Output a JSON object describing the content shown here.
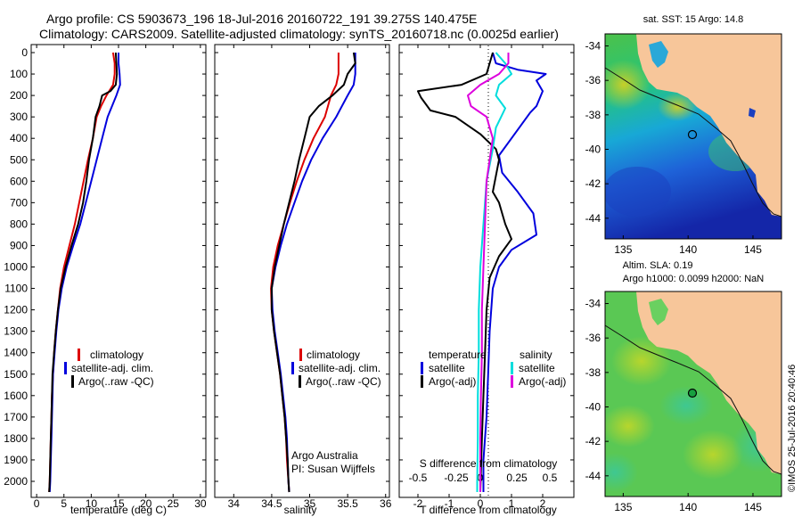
{
  "header": {
    "line1": "Argo profile: CS 5903673_196 18-Jul-2016 20160722_191 39.275S 140.475E",
    "line2": "Climatology: CARS2009. Satellite-adjusted climatology: synTS_20160718.nc (0.0025d earlier)"
  },
  "colors": {
    "climatology": "#dd0000",
    "satellite": "#0000dd",
    "argo": "#000000",
    "sal_satellite": "#00dddd",
    "sal_argo": "#dd00dd",
    "land": "#f7c69a"
  },
  "chart_data": [
    {
      "id": "temperature",
      "type": "line",
      "xlabel": "temperature (deg C)",
      "ylabel": "",
      "xlim": [
        -1,
        31
      ],
      "ylim": [
        2100,
        0
      ],
      "xticks": [
        0,
        5,
        10,
        15,
        20,
        25,
        30
      ],
      "yticks": [
        0,
        100,
        200,
        300,
        400,
        500,
        600,
        700,
        800,
        900,
        1000,
        1100,
        1200,
        1300,
        1400,
        1500,
        1600,
        1700,
        1800,
        1900,
        2000
      ],
      "legend": [
        "climatology",
        "satellite-adj. clim.",
        "Argo(..raw -QC)"
      ],
      "series": [
        {
          "name": "climatology",
          "color": "#dd0000",
          "points": [
            [
              14.0,
              0
            ],
            [
              14.3,
              50
            ],
            [
              14.3,
              100
            ],
            [
              14.0,
              150
            ],
            [
              12.8,
              200
            ],
            [
              11.8,
              250
            ],
            [
              11.0,
              300
            ],
            [
              10.3,
              400
            ],
            [
              9.4,
              500
            ],
            [
              8.6,
              600
            ],
            [
              7.8,
              700
            ],
            [
              7.0,
              800
            ],
            [
              6.0,
              900
            ],
            [
              5.0,
              1000
            ],
            [
              4.3,
              1100
            ],
            [
              3.9,
              1200
            ],
            [
              3.5,
              1300
            ],
            [
              3.2,
              1400
            ],
            [
              3.0,
              1500
            ],
            [
              2.8,
              1600
            ],
            [
              2.7,
              1700
            ],
            [
              2.6,
              1800
            ],
            [
              2.5,
              1900
            ],
            [
              2.4,
              2000
            ],
            [
              2.3,
              2050
            ]
          ]
        },
        {
          "name": "satellite-adj. clim.",
          "color": "#0000dd",
          "points": [
            [
              15.0,
              0
            ],
            [
              15.0,
              50
            ],
            [
              15.2,
              100
            ],
            [
              15.3,
              150
            ],
            [
              14.6,
              200
            ],
            [
              13.8,
              250
            ],
            [
              13.0,
              300
            ],
            [
              12.0,
              400
            ],
            [
              11.0,
              500
            ],
            [
              10.0,
              600
            ],
            [
              9.0,
              700
            ],
            [
              8.0,
              800
            ],
            [
              6.7,
              900
            ],
            [
              5.5,
              1000
            ],
            [
              4.6,
              1100
            ],
            [
              4.0,
              1200
            ],
            [
              3.6,
              1300
            ],
            [
              3.3,
              1400
            ],
            [
              3.0,
              1500
            ],
            [
              2.9,
              1600
            ],
            [
              2.8,
              1700
            ],
            [
              2.7,
              1800
            ],
            [
              2.6,
              1900
            ],
            [
              2.5,
              2000
            ],
            [
              2.4,
              2050
            ]
          ]
        },
        {
          "name": "Argo(..raw -QC)",
          "color": "#000000",
          "points": [
            [
              14.5,
              0
            ],
            [
              14.6,
              50
            ],
            [
              14.7,
              100
            ],
            [
              14.5,
              150
            ],
            [
              13.5,
              180
            ],
            [
              12.0,
              200
            ],
            [
              11.5,
              250
            ],
            [
              10.8,
              300
            ],
            [
              10.3,
              400
            ],
            [
              9.6,
              500
            ],
            [
              9.1,
              600
            ],
            [
              8.5,
              700
            ],
            [
              7.6,
              800
            ],
            [
              6.4,
              900
            ],
            [
              5.3,
              1000
            ],
            [
              4.4,
              1100
            ],
            [
              3.9,
              1200
            ],
            [
              3.5,
              1300
            ],
            [
              3.2,
              1400
            ],
            [
              2.9,
              1500
            ],
            [
              2.8,
              1600
            ],
            [
              2.7,
              1700
            ],
            [
              2.6,
              1800
            ],
            [
              2.5,
              1900
            ],
            [
              2.4,
              2000
            ],
            [
              2.3,
              2050
            ]
          ]
        }
      ]
    },
    {
      "id": "salinity",
      "type": "line",
      "xlabel": "salinity",
      "ylabel": "",
      "xlim": [
        33.75,
        36.05
      ],
      "ylim": [
        2100,
        0
      ],
      "xticks": [
        34,
        34.5,
        35,
        35.5,
        36
      ],
      "legend": [
        "climatology",
        "satellite-adj. clim.",
        "Argo(..raw -QC)"
      ],
      "annotation": [
        "Argo Australia",
        "PI: Susan Wijffels"
      ],
      "series": [
        {
          "name": "climatology",
          "color": "#dd0000",
          "points": [
            [
              35.38,
              0
            ],
            [
              35.38,
              100
            ],
            [
              35.35,
              150
            ],
            [
              35.28,
              200
            ],
            [
              35.2,
              300
            ],
            [
              35.05,
              400
            ],
            [
              34.93,
              500
            ],
            [
              34.83,
              600
            ],
            [
              34.74,
              700
            ],
            [
              34.66,
              800
            ],
            [
              34.58,
              900
            ],
            [
              34.52,
              1000
            ],
            [
              34.49,
              1100
            ],
            [
              34.5,
              1200
            ],
            [
              34.53,
              1300
            ],
            [
              34.57,
              1400
            ],
            [
              34.61,
              1500
            ],
            [
              34.64,
              1600
            ],
            [
              34.67,
              1700
            ],
            [
              34.69,
              1800
            ],
            [
              34.7,
              1900
            ],
            [
              34.72,
              2000
            ],
            [
              34.73,
              2050
            ]
          ]
        },
        {
          "name": "satellite-adj. clim.",
          "color": "#0000dd",
          "points": [
            [
              35.6,
              0
            ],
            [
              35.6,
              100
            ],
            [
              35.58,
              150
            ],
            [
              35.5,
              200
            ],
            [
              35.35,
              300
            ],
            [
              35.17,
              400
            ],
            [
              35.02,
              500
            ],
            [
              34.9,
              600
            ],
            [
              34.8,
              700
            ],
            [
              34.7,
              800
            ],
            [
              34.62,
              900
            ],
            [
              34.55,
              1000
            ],
            [
              34.5,
              1100
            ],
            [
              34.51,
              1200
            ],
            [
              34.54,
              1300
            ],
            [
              34.58,
              1400
            ],
            [
              34.62,
              1500
            ],
            [
              34.65,
              1600
            ],
            [
              34.68,
              1700
            ],
            [
              34.7,
              1800
            ],
            [
              34.71,
              1900
            ],
            [
              34.72,
              2000
            ],
            [
              34.73,
              2050
            ]
          ]
        },
        {
          "name": "Argo(..raw -QC)",
          "color": "#000000",
          "points": [
            [
              35.58,
              0
            ],
            [
              35.6,
              50
            ],
            [
              35.5,
              100
            ],
            [
              35.45,
              150
            ],
            [
              35.3,
              200
            ],
            [
              35.12,
              250
            ],
            [
              35.0,
              300
            ],
            [
              34.93,
              400
            ],
            [
              34.86,
              500
            ],
            [
              34.8,
              600
            ],
            [
              34.73,
              700
            ],
            [
              34.66,
              800
            ],
            [
              34.6,
              900
            ],
            [
              34.54,
              1000
            ],
            [
              34.5,
              1100
            ],
            [
              34.5,
              1200
            ],
            [
              34.53,
              1300
            ],
            [
              34.57,
              1400
            ],
            [
              34.61,
              1500
            ],
            [
              34.64,
              1600
            ],
            [
              34.67,
              1700
            ],
            [
              34.69,
              1800
            ],
            [
              34.71,
              1900
            ],
            [
              34.72,
              2000
            ],
            [
              34.73,
              2050
            ]
          ]
        }
      ]
    },
    {
      "id": "difference",
      "type": "line",
      "xlabel": "T difference from climatology",
      "xlabel_top": "S difference from climatology",
      "xlim": [
        -2.6,
        3.0
      ],
      "ylim": [
        2100,
        0
      ],
      "xticks": [
        -2,
        -1,
        0,
        1,
        2
      ],
      "xticks_top": [
        "-0.5",
        "-0.25",
        "0",
        "0.25",
        "0.5"
      ],
      "legend_headers": [
        "temperature",
        "salinity"
      ],
      "legend": [
        "satellite",
        "Argo(-adj)",
        "satellite",
        "Argo(-adj)"
      ],
      "series": [
        {
          "name": "satellite",
          "group": "temperature",
          "color": "#0000dd",
          "points": [
            [
              0.4,
              0
            ],
            [
              0.5,
              50
            ],
            [
              1.2,
              80
            ],
            [
              2.1,
              100
            ],
            [
              1.8,
              130
            ],
            [
              2.0,
              180
            ],
            [
              1.8,
              250
            ],
            [
              1.6,
              280
            ],
            [
              1.0,
              400
            ],
            [
              0.6,
              480
            ],
            [
              0.7,
              560
            ],
            [
              1.2,
              650
            ],
            [
              1.7,
              750
            ],
            [
              1.8,
              850
            ],
            [
              1.0,
              920
            ],
            [
              0.6,
              1000
            ],
            [
              0.4,
              1100
            ],
            [
              0.3,
              1300
            ],
            [
              0.25,
              1500
            ],
            [
              0.2,
              1700
            ],
            [
              0.1,
              1900
            ],
            [
              0.1,
              2050
            ]
          ]
        },
        {
          "name": "Argo(-adj)",
          "group": "temperature",
          "color": "#000000",
          "points": [
            [
              0.4,
              0
            ],
            [
              0.3,
              50
            ],
            [
              0.2,
              100
            ],
            [
              -0.6,
              150
            ],
            [
              -2.0,
              180
            ],
            [
              -1.9,
              210
            ],
            [
              -1.6,
              270
            ],
            [
              -0.8,
              300
            ],
            [
              0,
              380
            ],
            [
              0.5,
              450
            ],
            [
              0.6,
              500
            ],
            [
              0.4,
              650
            ],
            [
              0.6,
              700
            ],
            [
              0.8,
              800
            ],
            [
              1.0,
              870
            ],
            [
              0.6,
              950
            ],
            [
              0.3,
              1050
            ],
            [
              0.2,
              1200
            ],
            [
              0.15,
              1400
            ],
            [
              0.1,
              1600
            ],
            [
              0.05,
              1800
            ],
            [
              0.0,
              2050
            ]
          ]
        },
        {
          "name": "satellite",
          "group": "salinity",
          "color": "#00dddd",
          "points": [
            [
              0.5,
              0
            ],
            [
              0.8,
              50
            ],
            [
              1.0,
              100
            ],
            [
              0.6,
              150
            ],
            [
              0.5,
              200
            ],
            [
              0.8,
              260
            ],
            [
              0.5,
              350
            ],
            [
              0.4,
              450
            ],
            [
              0.2,
              600
            ],
            [
              0.1,
              800
            ],
            [
              0.0,
              1000
            ],
            [
              -0.05,
              1200
            ],
            [
              -0.05,
              1400
            ],
            [
              -0.08,
              1600
            ],
            [
              -0.08,
              1800
            ],
            [
              -0.1,
              2000
            ],
            [
              -0.1,
              2050
            ]
          ]
        },
        {
          "name": "Argo(-adj)",
          "group": "salinity",
          "color": "#dd00dd",
          "points": [
            [
              0.9,
              0
            ],
            [
              0.9,
              50
            ],
            [
              0.6,
              100
            ],
            [
              0.0,
              150
            ],
            [
              -0.4,
              200
            ],
            [
              -0.3,
              250
            ],
            [
              0.2,
              300
            ],
            [
              0.4,
              400
            ],
            [
              0.3,
              500
            ],
            [
              0.2,
              600
            ],
            [
              0.15,
              800
            ],
            [
              0.1,
              1000
            ],
            [
              0.05,
              1200
            ],
            [
              0.05,
              1400
            ],
            [
              0.02,
              1600
            ],
            [
              0.0,
              1800
            ],
            [
              0.0,
              2050
            ]
          ]
        }
      ]
    },
    {
      "id": "map_sst",
      "type": "heatmap",
      "title": "sat. SST: 15 Argo: 14.8",
      "xticks": [
        135,
        140,
        145
      ],
      "yticks": [
        -34,
        -36,
        -38,
        -40,
        -42,
        -44
      ],
      "marker": {
        "lon": 140.475,
        "lat": -39.275
      }
    },
    {
      "id": "map_sla",
      "type": "heatmap",
      "title": "Altim. SLA: 0.19",
      "subtitle": "Argo h1000: 0.0099 h2000: NaN",
      "xticks": [
        135,
        140,
        145
      ],
      "yticks": [
        -34,
        -36,
        -38,
        -40,
        -42,
        -44
      ],
      "marker": {
        "lon": 140.475,
        "lat": -39.275
      }
    }
  ],
  "footer": {
    "credit": "©IMOS 25-Jul-2016 20:40:46"
  }
}
